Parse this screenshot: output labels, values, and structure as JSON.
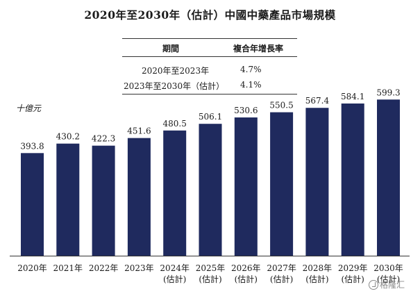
{
  "title": "2020年至2030年（估計）中國中藥產品市場規模",
  "cagr_table": {
    "header_period": "期間",
    "header_rate": "複合年增長率",
    "rows": [
      {
        "period": "2020年至2023年",
        "rate": "4.7%"
      },
      {
        "period": "2023年至2030年（估計）",
        "rate": "4.1%"
      }
    ]
  },
  "watermark": "格隆汇",
  "colors": {
    "bar": "#1f2a5e",
    "text": "#1a1a1a",
    "axis": "#333333"
  },
  "chart_data": {
    "type": "bar",
    "title": "2020年至2030年（估計）中國中藥產品市場規模",
    "ylabel": "十億元",
    "xlabel": "",
    "categories": [
      "2020年",
      "2021年",
      "2022年",
      "2023年",
      "2024年",
      "2025年",
      "2026年",
      "2027年",
      "2028年",
      "2029年",
      "2030年"
    ],
    "category_sublabels": [
      "",
      "",
      "",
      "",
      "(估計)",
      "(估計)",
      "(估計)",
      "(估計)",
      "(估計)",
      "(估計)",
      "(估計)"
    ],
    "values": [
      393.8,
      430.2,
      422.3,
      451.6,
      480.5,
      506.1,
      530.6,
      550.5,
      567.4,
      584.1,
      599.3
    ],
    "value_labels": [
      "393.8",
      "430.2",
      "422.3",
      "451.6",
      "480.5",
      "506.1",
      "530.6",
      "550.5",
      "567.4",
      "584.1",
      "599.3"
    ],
    "ylim": [
      0,
      640
    ],
    "grid": false,
    "legend": "none",
    "data_labels": "above-bars"
  }
}
